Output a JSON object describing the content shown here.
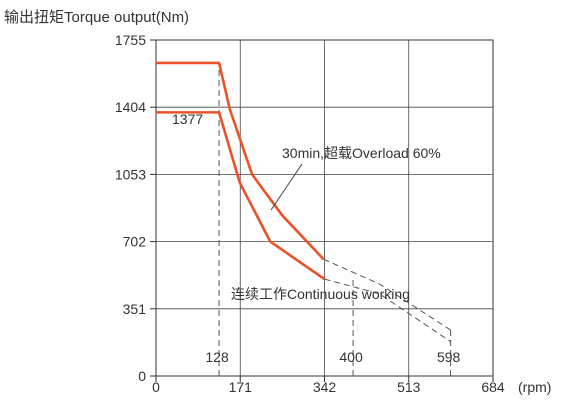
{
  "chart_data": {
    "type": "line",
    "title": "输出扭矩Torque output(Nm)",
    "xlabel": "(rpm)",
    "ylabel": "输出扭矩Torque output(Nm)",
    "xlim": [
      0,
      684
    ],
    "ylim": [
      0,
      1755
    ],
    "x_ticks": [
      0,
      171,
      342,
      513,
      684
    ],
    "y_ticks": [
      0,
      351,
      702,
      1053,
      1404,
      1755
    ],
    "grid": true,
    "series": [
      {
        "name": "30min,超载Overload 60%",
        "color": "#e8532a",
        "points": [
          [
            0,
            1635
          ],
          [
            128,
            1635
          ],
          [
            150,
            1392
          ],
          [
            195,
            1053
          ],
          [
            256,
            840
          ],
          [
            340,
            610
          ]
        ]
      },
      {
        "name": "连续工作Continuous working",
        "color": "#e8532a",
        "points": [
          [
            0,
            1377
          ],
          [
            128,
            1377
          ],
          [
            170,
            1010
          ],
          [
            232,
            702
          ],
          [
            342,
            506
          ]
        ]
      }
    ],
    "extensions": [
      {
        "points": [
          [
            340,
            610
          ],
          [
            454,
            480
          ],
          [
            598,
            240
          ]
        ]
      },
      {
        "points": [
          [
            342,
            506
          ],
          [
            453,
            430
          ],
          [
            598,
            180
          ]
        ]
      }
    ],
    "marker_lines": [
      {
        "x": 128,
        "y_from": 0,
        "y_to": 1635,
        "label": "128"
      },
      {
        "x": 400,
        "y_from": 0,
        "y_to": 506,
        "label": "400"
      },
      {
        "x": 598,
        "y_from": 0,
        "y_to": 240,
        "label": "598"
      }
    ],
    "annotations": {
      "value_1377": "1377",
      "overload_label": "30min,超载Overload 60%",
      "continuous_label": "连续工作Continuous working"
    }
  }
}
